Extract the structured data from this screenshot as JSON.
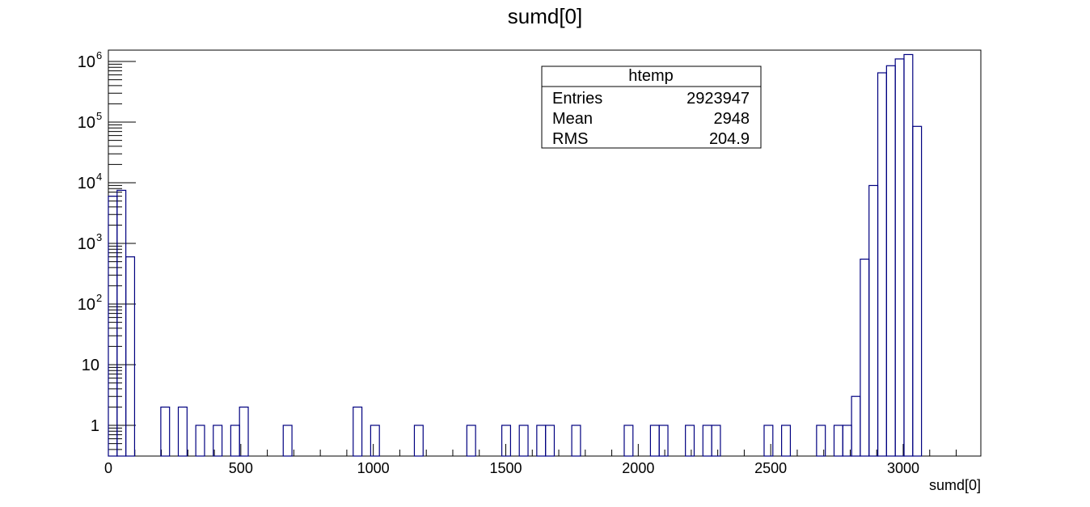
{
  "chart_data": {
    "type": "bar",
    "title": "sumd[0]",
    "xlabel": "sumd[0]",
    "ylabel": "",
    "xlim": [
      0,
      3300
    ],
    "ylim": [
      0.3,
      1600000
    ],
    "log_y": true,
    "grid": false,
    "bin_width": 33,
    "series": [
      {
        "name": "htemp",
        "color": "#000080",
        "bins": [
          [
            0,
            6000
          ],
          [
            33,
            7500
          ],
          [
            66,
            600
          ],
          [
            198,
            2
          ],
          [
            264,
            2
          ],
          [
            330,
            1
          ],
          [
            396,
            1
          ],
          [
            462,
            1
          ],
          [
            495,
            2
          ],
          [
            660,
            1
          ],
          [
            924,
            2
          ],
          [
            990,
            1
          ],
          [
            1155,
            1
          ],
          [
            1353,
            1
          ],
          [
            1485,
            1
          ],
          [
            1551,
            1
          ],
          [
            1617,
            1
          ],
          [
            1650,
            1
          ],
          [
            1749,
            1
          ],
          [
            1947,
            1
          ],
          [
            2046,
            1
          ],
          [
            2079,
            1
          ],
          [
            2178,
            1
          ],
          [
            2244,
            1
          ],
          [
            2277,
            1
          ],
          [
            2475,
            1
          ],
          [
            2541,
            1
          ],
          [
            2673,
            1
          ],
          [
            2739,
            1
          ],
          [
            2772,
            1
          ],
          [
            2805,
            3
          ],
          [
            2838,
            550
          ],
          [
            2871,
            9000
          ],
          [
            2904,
            650000
          ],
          [
            2937,
            850000
          ],
          [
            2970,
            1100000
          ],
          [
            3003,
            1300000
          ],
          [
            3036,
            85000
          ]
        ]
      }
    ],
    "x_ticks": [
      {
        "value": 0,
        "label": "0"
      },
      {
        "value": 500,
        "label": "500"
      },
      {
        "value": 1000,
        "label": "1000"
      },
      {
        "value": 1500,
        "label": "1500"
      },
      {
        "value": 2000,
        "label": "2000"
      },
      {
        "value": 2500,
        "label": "2500"
      },
      {
        "value": 3000,
        "label": "3000"
      }
    ],
    "y_ticks": [
      {
        "value": 1,
        "base": "1",
        "exp": ""
      },
      {
        "value": 10,
        "base": "10",
        "exp": ""
      },
      {
        "value": 100,
        "base": "10",
        "exp": "2"
      },
      {
        "value": 1000,
        "base": "10",
        "exp": "3"
      },
      {
        "value": 10000,
        "base": "10",
        "exp": "4"
      },
      {
        "value": 100000,
        "base": "10",
        "exp": "5"
      },
      {
        "value": 1000000,
        "base": "10",
        "exp": "6"
      }
    ],
    "stats_box": {
      "title": "htemp",
      "rows": [
        {
          "label": "Entries",
          "value": "2923947"
        },
        {
          "label": "Mean",
          "value": "2948"
        },
        {
          "label": "RMS",
          "value": "204.9"
        }
      ]
    }
  }
}
